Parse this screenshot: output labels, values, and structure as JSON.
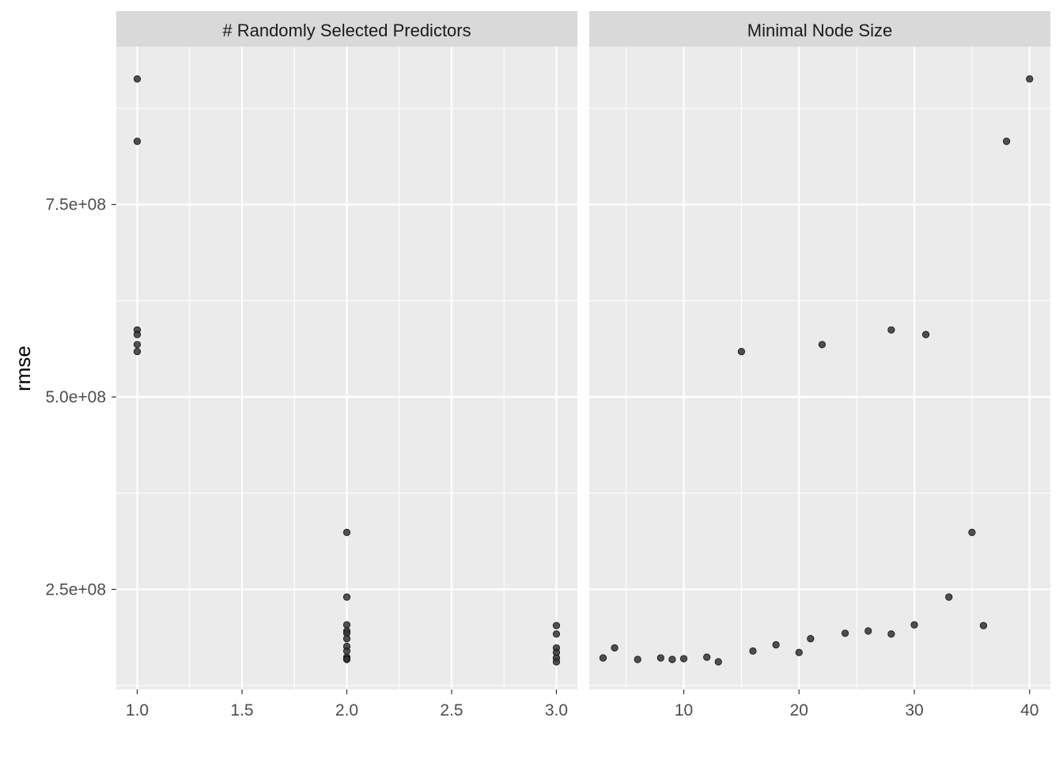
{
  "chart_data": {
    "type": "scatter",
    "ylabel": "rmse",
    "ylim": [
      120000000,
      955000000
    ],
    "y_ticks": [
      250000000,
      500000000,
      750000000
    ],
    "y_tick_labels": [
      "2.5e+08",
      "5.0e+08",
      "7.5e+08"
    ],
    "grid": true,
    "point_color": "#333333",
    "panel_background": "#ebebeb",
    "strip_background": "#d9d9d9",
    "panels": [
      {
        "title": "# Randomly Selected Predictors",
        "xlim": [
          0.9,
          3.1
        ],
        "x_ticks": [
          1.0,
          1.5,
          2.0,
          2.5,
          3.0
        ],
        "x_tick_labels": [
          "1.0",
          "1.5",
          "2.0",
          "2.5",
          "3.0"
        ],
        "points": [
          {
            "x": 1,
            "y": 913000000
          },
          {
            "x": 1,
            "y": 832000000
          },
          {
            "x": 1,
            "y": 587000000
          },
          {
            "x": 1,
            "y": 581000000
          },
          {
            "x": 1,
            "y": 568000000
          },
          {
            "x": 1,
            "y": 559000000
          },
          {
            "x": 2,
            "y": 324000000
          },
          {
            "x": 2,
            "y": 240000000
          },
          {
            "x": 2,
            "y": 204000000
          },
          {
            "x": 2,
            "y": 196000000
          },
          {
            "x": 2,
            "y": 193000000
          },
          {
            "x": 2,
            "y": 186000000
          },
          {
            "x": 2,
            "y": 176000000
          },
          {
            "x": 2,
            "y": 170000000
          },
          {
            "x": 2,
            "y": 162000000
          },
          {
            "x": 2,
            "y": 160000000
          },
          {
            "x": 2,
            "y": 159000000
          },
          {
            "x": 3,
            "y": 203000000
          },
          {
            "x": 3,
            "y": 192000000
          },
          {
            "x": 3,
            "y": 174000000
          },
          {
            "x": 3,
            "y": 168000000
          },
          {
            "x": 3,
            "y": 161000000
          },
          {
            "x": 3,
            "y": 156000000
          }
        ]
      },
      {
        "title": "Minimal Node Size",
        "xlim": [
          1.8,
          41.8
        ],
        "x_ticks": [
          10,
          20,
          30,
          40
        ],
        "x_tick_labels": [
          "10",
          "20",
          "30",
          "40"
        ],
        "points": [
          {
            "x": 3,
            "y": 161000000
          },
          {
            "x": 4,
            "y": 174000000
          },
          {
            "x": 6,
            "y": 159000000
          },
          {
            "x": 8,
            "y": 161000000
          },
          {
            "x": 9,
            "y": 159000000
          },
          {
            "x": 10,
            "y": 160000000
          },
          {
            "x": 12,
            "y": 162000000
          },
          {
            "x": 13,
            "y": 156000000
          },
          {
            "x": 15,
            "y": 559000000
          },
          {
            "x": 16,
            "y": 170000000
          },
          {
            "x": 18,
            "y": 178000000
          },
          {
            "x": 20,
            "y": 168000000
          },
          {
            "x": 21,
            "y": 186000000
          },
          {
            "x": 22,
            "y": 568000000
          },
          {
            "x": 24,
            "y": 193000000
          },
          {
            "x": 26,
            "y": 196000000
          },
          {
            "x": 28,
            "y": 587000000
          },
          {
            "x": 28,
            "y": 192000000
          },
          {
            "x": 30,
            "y": 204000000
          },
          {
            "x": 31,
            "y": 581000000
          },
          {
            "x": 33,
            "y": 240000000
          },
          {
            "x": 35,
            "y": 324000000
          },
          {
            "x": 36,
            "y": 203000000
          },
          {
            "x": 38,
            "y": 832000000
          },
          {
            "x": 40,
            "y": 913000000
          }
        ]
      }
    ]
  }
}
